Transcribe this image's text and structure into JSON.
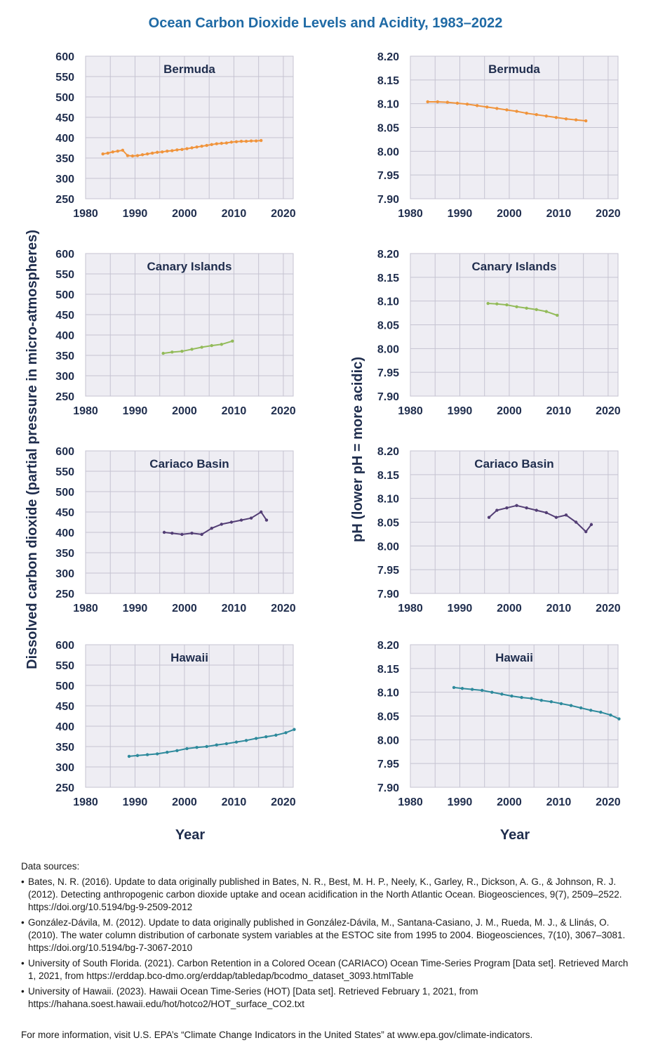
{
  "title": "Ocean Carbon Dioxide Levels and Acidity, 1983–2022",
  "left_axis_label": "Dissolved carbon dioxide (partial pressure in micro-atmospheres)",
  "right_axis_label": "pH (lower pH = more acidic)",
  "x_axis_label": "Year",
  "colors": {
    "bermuda": "#f0943c",
    "canary": "#93bb5a",
    "cariaco": "#533e75",
    "hawaii": "#2e8a9c",
    "title": "#1f6aa5",
    "axis_text": "#1f2d4d",
    "plot_bg": "#eeedf3",
    "grid": "#c5c3d1"
  },
  "chart_data": [
    {
      "type": "line",
      "title": "Bermuda",
      "metric": "co2",
      "color": "#f0943c",
      "xlim": [
        1980,
        2022
      ],
      "ylim": [
        250,
        600
      ],
      "xticks": [
        1980,
        1990,
        2000,
        2010,
        2020
      ],
      "yticks": [
        250,
        300,
        350,
        400,
        450,
        500,
        550,
        600
      ],
      "x": [
        1983.5,
        1984.5,
        1985.5,
        1986.5,
        1987.5,
        1988.5,
        1989.5,
        1990.5,
        1991.5,
        1992.5,
        1993.5,
        1994.5,
        1995.5,
        1996.5,
        1997.5,
        1998.5,
        1999.5,
        2000.5,
        2001.5,
        2002.5,
        2003.5,
        2004.5,
        2005.5,
        2006.5,
        2007.5,
        2008.5,
        2009.5,
        2010.5,
        2011.5,
        2012.5,
        2013.5,
        2014.5,
        2015.5
      ],
      "y": [
        360,
        362,
        365,
        367,
        369,
        356,
        355,
        356,
        358,
        360,
        362,
        364,
        365,
        367,
        368,
        370,
        371,
        373,
        375,
        377,
        379,
        381,
        383,
        385,
        386,
        387,
        389,
        390,
        391,
        391,
        392,
        392,
        393
      ]
    },
    {
      "type": "line",
      "title": "Bermuda",
      "metric": "ph",
      "color": "#f0943c",
      "xlim": [
        1980,
        2022
      ],
      "ylim": [
        7.9,
        8.2
      ],
      "xticks": [
        1980,
        1990,
        2000,
        2010,
        2020
      ],
      "yticks": [
        7.9,
        7.95,
        8.0,
        8.05,
        8.1,
        8.15,
        8.2
      ],
      "x": [
        1983.5,
        1985.5,
        1987.5,
        1989.5,
        1991.5,
        1993.5,
        1995.5,
        1997.5,
        1999.5,
        2001.5,
        2003.5,
        2005.5,
        2007.5,
        2009.5,
        2011.5,
        2013.5,
        2015.5
      ],
      "y": [
        8.104,
        8.104,
        8.103,
        8.101,
        8.099,
        8.096,
        8.093,
        8.09,
        8.087,
        8.084,
        8.08,
        8.077,
        8.074,
        8.071,
        8.068,
        8.066,
        8.064
      ]
    },
    {
      "type": "line",
      "title": "Canary Islands",
      "metric": "co2",
      "color": "#93bb5a",
      "xlim": [
        1980,
        2022
      ],
      "ylim": [
        250,
        600
      ],
      "xticks": [
        1980,
        1990,
        2000,
        2010,
        2020
      ],
      "yticks": [
        250,
        300,
        350,
        400,
        450,
        500,
        550,
        600
      ],
      "x": [
        1995.7,
        1997.5,
        1999.5,
        2001.5,
        2003.5,
        2005.5,
        2007.5,
        2009.7
      ],
      "y": [
        355,
        358,
        360,
        365,
        370,
        374,
        377,
        385
      ]
    },
    {
      "type": "line",
      "title": "Canary Islands",
      "metric": "ph",
      "color": "#93bb5a",
      "xlim": [
        1980,
        2022
      ],
      "ylim": [
        7.9,
        8.2
      ],
      "xticks": [
        1980,
        1990,
        2000,
        2010,
        2020
      ],
      "yticks": [
        7.9,
        7.95,
        8.0,
        8.05,
        8.1,
        8.15,
        8.2
      ],
      "x": [
        1995.7,
        1997.5,
        1999.5,
        2001.5,
        2003.5,
        2005.5,
        2007.5,
        2009.7
      ],
      "y": [
        8.095,
        8.094,
        8.092,
        8.088,
        8.085,
        8.082,
        8.078,
        8.07
      ]
    },
    {
      "type": "line",
      "title": "Cariaco Basin",
      "metric": "co2",
      "color": "#533e75",
      "xlim": [
        1980,
        2022
      ],
      "ylim": [
        250,
        600
      ],
      "xticks": [
        1980,
        1990,
        2000,
        2010,
        2020
      ],
      "yticks": [
        250,
        300,
        350,
        400,
        450,
        500,
        550,
        600
      ],
      "x": [
        1995.9,
        1997.5,
        1999.5,
        2001.5,
        2003.5,
        2005.5,
        2007.5,
        2009.5,
        2011.5,
        2013.5,
        2015.5,
        2016.6
      ],
      "y": [
        400,
        398,
        395,
        398,
        395,
        410,
        420,
        425,
        430,
        435,
        450,
        430
      ]
    },
    {
      "type": "line",
      "title": "Cariaco Basin",
      "metric": "ph",
      "color": "#533e75",
      "xlim": [
        1980,
        2022
      ],
      "ylim": [
        7.9,
        8.2
      ],
      "xticks": [
        1980,
        1990,
        2000,
        2010,
        2020
      ],
      "yticks": [
        7.9,
        7.95,
        8.0,
        8.05,
        8.1,
        8.15,
        8.2
      ],
      "x": [
        1995.9,
        1997.5,
        1999.5,
        2001.5,
        2003.5,
        2005.5,
        2007.5,
        2009.5,
        2011.5,
        2013.5,
        2015.5,
        2016.6
      ],
      "y": [
        8.06,
        8.075,
        8.08,
        8.085,
        8.08,
        8.075,
        8.07,
        8.06,
        8.065,
        8.05,
        8.03,
        8.045
      ]
    },
    {
      "type": "line",
      "title": "Hawaii",
      "metric": "co2",
      "color": "#2e8a9c",
      "xlim": [
        1980,
        2022
      ],
      "ylim": [
        250,
        600
      ],
      "xticks": [
        1980,
        1990,
        2000,
        2010,
        2020
      ],
      "yticks": [
        250,
        300,
        350,
        400,
        450,
        500,
        550,
        600
      ],
      "x": [
        1988.8,
        1990.5,
        1992.5,
        1994.5,
        1996.5,
        1998.5,
        2000.5,
        2002.5,
        2004.5,
        2006.5,
        2008.5,
        2010.5,
        2012.5,
        2014.5,
        2016.5,
        2018.5,
        2020.5,
        2022.2
      ],
      "y": [
        326,
        328,
        330,
        332,
        336,
        340,
        345,
        348,
        350,
        354,
        357,
        361,
        365,
        370,
        374,
        378,
        384,
        392
      ]
    },
    {
      "type": "line",
      "title": "Hawaii",
      "metric": "ph",
      "color": "#2e8a9c",
      "xlim": [
        1980,
        2022
      ],
      "ylim": [
        7.9,
        8.2
      ],
      "xticks": [
        1980,
        1990,
        2000,
        2010,
        2020
      ],
      "yticks": [
        7.9,
        7.95,
        8.0,
        8.05,
        8.1,
        8.15,
        8.2
      ],
      "x": [
        1988.8,
        1990.5,
        1992.5,
        1994.5,
        1996.5,
        1998.5,
        2000.5,
        2002.5,
        2004.5,
        2006.5,
        2008.5,
        2010.5,
        2012.5,
        2014.5,
        2016.5,
        2018.5,
        2020.5,
        2022.2
      ],
      "y": [
        8.11,
        8.108,
        8.106,
        8.104,
        8.1,
        8.096,
        8.092,
        8.089,
        8.087,
        8.083,
        8.08,
        8.076,
        8.072,
        8.067,
        8.062,
        8.058,
        8.052,
        8.044
      ]
    }
  ],
  "sources": {
    "heading": "Data sources:",
    "items": [
      "Bates, N. R. (2016). Update to data originally published in Bates, N. R., Best, M. H. P., Neely, K., Garley, R., Dickson, A. G., & Johnson, R. J. (2012). Detecting anthropogenic carbon dioxide uptake and ocean acidification in the North Atlantic Ocean. Biogeosciences, 9(7), 2509–2522. https://doi.org/10.5194/bg-9-2509-2012",
      "González-Dávila, M. (2012). Update to data originally published in González-Dávila, M., Santana-Casiano, J. M., Rueda, M. J., & Llinás, O. (2010). The water column distribution of carbonate system variables at the ESTOC site from 1995 to 2004. Biogeosciences, 7(10), 3067–3081. https://doi.org/10.5194/bg-7-3067-2010",
      "University of South Florida. (2021). Carbon Retention in a Colored Ocean (CARIACO) Ocean Time-Series Program [Data set]. Retrieved March 1, 2021, from https://erddap.bco-dmo.org/erddap/tabledap/bcodmo_dataset_3093.htmlTable",
      "University of Hawaii. (2023). Hawaii Ocean Time-Series (HOT) [Data set]. Retrieved February 1, 2021, from https://hahana.soest.hawaii.edu/hot/hotco2/HOT_surface_CO2.txt"
    ]
  },
  "footer": "For more information, visit U.S. EPA’s “Climate Change Indicators in the United States” at www.epa.gov/climate-indicators."
}
